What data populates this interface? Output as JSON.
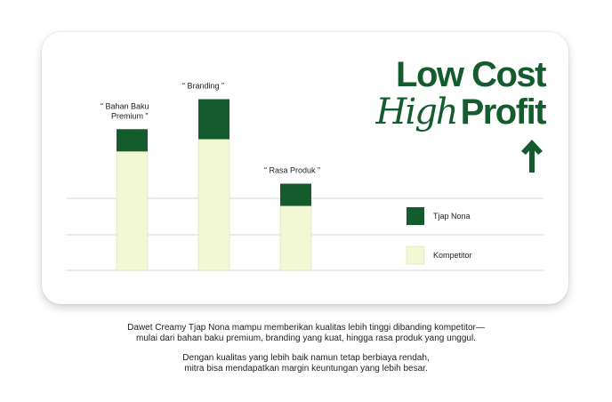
{
  "headline": {
    "line1": "Low Cost",
    "high": "High",
    "profit": "Profit",
    "arrow_icon": "arrow-up-icon"
  },
  "caption": {
    "p1_line1": "Dawet Creamy Tjap Nona mampu memberikan kualitas lebih tinggi dibanding kompetitor—",
    "p1_line2": "mulai dari bahan baku premium, branding yang kuat, hingga rasa produk yang unggul.",
    "p2_line1": "Dengan kualitas yang lebih baik namun tetap berbiaya rendah,",
    "p2_line2": "mitra bisa mendapatkan margin keuntungan yang lebih besar."
  },
  "colors": {
    "tjap_nona": "#145c2e",
    "kompetitor": "#f2f7d4",
    "grid": "#d6d6d6"
  },
  "chart_data": {
    "type": "bar",
    "stacked": true,
    "categories": [
      [
        "“  Bahan Baku",
        "Premium  ”"
      ],
      [
        "“  Branding  ”"
      ],
      [
        "“  Rasa Produk  ”"
      ]
    ],
    "series": [
      {
        "name": "Kompetitor",
        "values": [
          107,
          118,
          58
        ]
      },
      {
        "name": "Tjap Nona",
        "values": [
          20,
          36,
          20
        ]
      }
    ],
    "ylim": [
      0,
      160
    ],
    "grid": true,
    "legend": [
      "Tjap Nona",
      "Kompetitor"
    ],
    "legend_position": "right",
    "xlabel": "",
    "ylabel": ""
  }
}
